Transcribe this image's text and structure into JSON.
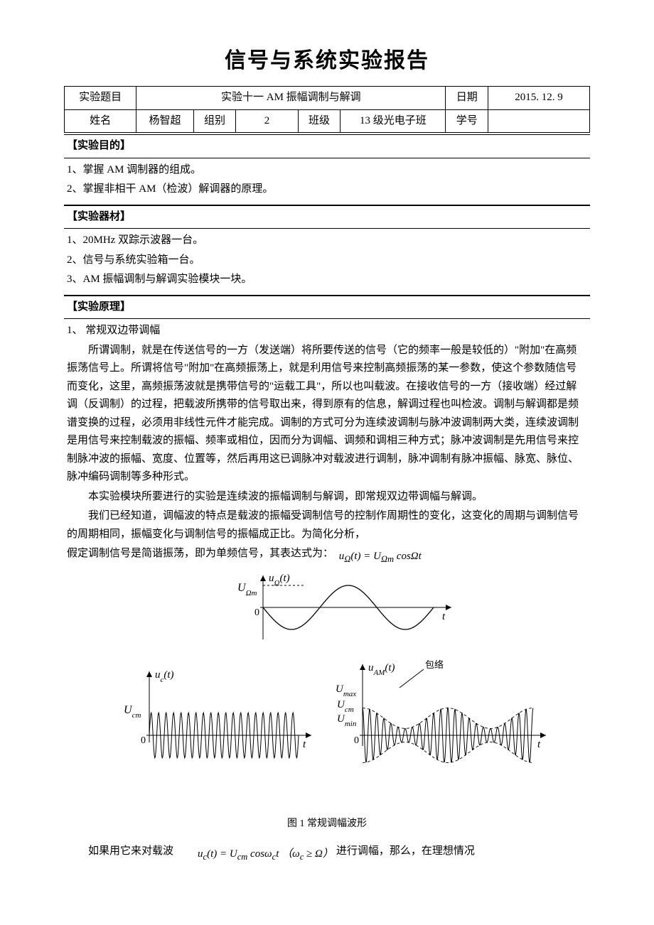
{
  "title": "信号与系统实验报告",
  "header": {
    "labels": {
      "topic": "实验题目",
      "date": "日期",
      "name": "姓名",
      "group": "组别",
      "class": "班级",
      "id": "学号"
    },
    "values": {
      "topic": "实验十一 AM 振幅调制与解调",
      "date": "2015. 12. 9",
      "name": "杨智超",
      "group": "2",
      "class": "13 级光电子班",
      "id": ""
    }
  },
  "sections": {
    "purpose": {
      "head": "【实验目的】",
      "items": [
        "1、掌握 AM 调制器的组成。",
        "2、掌握非相干 AM（检波）解调器的原理。"
      ]
    },
    "equipment": {
      "head": "【实验器材】",
      "items": [
        "1、20MHz 双踪示波器一台。",
        "2、信号与系统实验箱一台。",
        "3、AM 振幅调制与解调实验模块一块。"
      ]
    },
    "principle": {
      "head": "【实验原理】",
      "sub1": "1、 常规双边带调幅",
      "p1": "所谓调制，就是在传送信号的一方（发送端）将所要传送的信号（它的频率一般是较低的）\"附加\"在高频振荡信号上。所谓将信号\"附加\"在高频振荡上，就是利用信号来控制高频振荡的某一参数，使这个参数随信号而变化，这里，高频振荡波就是携带信号的\"运载工具\"，所以也叫载波。在接收信号的一方（接收端）经过解调（反调制）的过程，把载波所携带的信号取出来，得到原有的信息，解调过程也叫检波。调制与解调都是频谱变换的过程，必须用非线性元件才能完成。调制的方式可分为连续波调制与脉冲波调制两大类，连续波调制是用信号来控制载波的振幅、频率或相位，因而分为调幅、调频和调相三种方式；脉冲波调制是先用信号来控制脉冲波的振幅、宽度、位置等，然后再用这已调脉冲对载波进行调制，脉冲调制有脉冲振幅、脉宽、脉位、脉冲编码调制等多种形式。",
      "p2": "本实验模块所要进行的实验是连续波的振幅调制与解调，即常规双边带调幅与解调。",
      "p3": "我们已经知道，调幅波的特点是载波的振幅受调制信号的控制作周期性的变化，这变化的周期与调制信号的周期相同，振幅变化与调制信号的振幅成正比。为简化分析，",
      "p4a": "假定调制信号是简谐振荡，即为单频信号，其表达式为：",
      "eq1_html": "<i>u</i><sub>Ω</sub>(<i>t</i>) = <i>U</i><sub>Ω<i>m</i></sub> cosΩ<i>t</i>",
      "caption": "图 1 常规调幅波形",
      "last_a": "如果用它来对载波",
      "eq2_html": "<i>u</i><sub><i>c</i></sub>(<i>t</i>) = <i>U</i><sub><i>cm</i></sub> cos<i>ω</i><sub><i>c</i></sub><i>t</i> （<i>ω</i><sub><i>c</i></sub> ≥ Ω）",
      "last_b": "进行调幅，那么，在理想情况"
    }
  },
  "figure": {
    "top": {
      "ylabel": "u_Ω(t)",
      "amp_label": "U_Ωm",
      "x0_label": "0",
      "t_label": "t",
      "color": "#000000",
      "ylim": [
        -35,
        35
      ],
      "xlim": [
        0,
        260
      ]
    },
    "carrier": {
      "ylabel": "u_c(t)",
      "amp_label": "U_cm",
      "x0_label": "0",
      "t_label": "t",
      "color": "#000000",
      "cycles": 20,
      "ylim": [
        -32,
        32
      ],
      "xlim": [
        0,
        220
      ]
    },
    "am": {
      "ylabel": "u_AM(t)",
      "envelope_label": "包络",
      "umax": "U_max",
      "ucm": "U_cm",
      "umin": "U_min",
      "x0_label": "0",
      "t_label": "t",
      "color": "#000000",
      "carrier_cycles": 24,
      "env_cycles": 2,
      "ylim": [
        -40,
        40
      ],
      "xlim": [
        0,
        250
      ]
    }
  }
}
